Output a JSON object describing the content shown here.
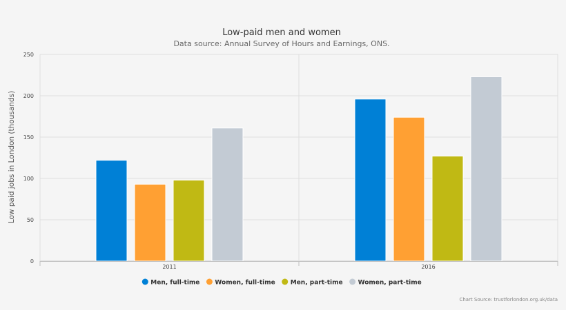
{
  "chart_data": {
    "type": "bar",
    "title": "Low-paid men and women",
    "subtitle": "Data source: Annual Survey of Hours and Earnings, ONS.",
    "xlabel": "",
    "ylabel": "Low paid jobs in London (thousands)",
    "categories": [
      "2011",
      "2016"
    ],
    "ylim": [
      0,
      250
    ],
    "yticks": [
      0,
      50,
      100,
      150,
      200,
      250
    ],
    "grid": true,
    "legend_position": "bottom",
    "series": [
      {
        "name": "Men, full-time",
        "color": "#0080d6",
        "values": [
          122,
          196
        ]
      },
      {
        "name": "Women, full-time",
        "color": "#ffa033",
        "values": [
          93,
          174
        ]
      },
      {
        "name": "Men, part-time",
        "color": "#c0b914",
        "values": [
          98,
          127
        ]
      },
      {
        "name": "Women, part-time",
        "color": "#c3cbd4",
        "values": [
          161,
          223
        ]
      }
    ],
    "credits": "Chart Source: trustforlondon.org.uk/data"
  }
}
